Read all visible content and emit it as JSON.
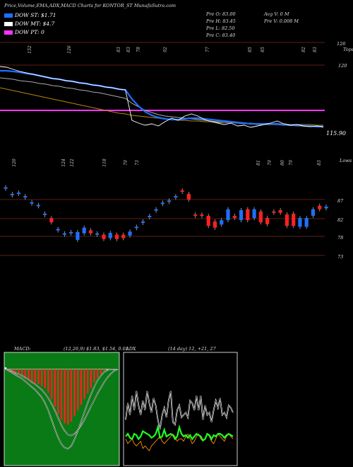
{
  "header": {
    "title": "Price,Volume,EMA,ADX,MACD Charts for KONTOR_ST MunafaSutra.com",
    "ohlc": [
      "Pre O: 83.00",
      "Pre H: 83.45",
      "Pre L: 82.50",
      "Pre C: 83.40"
    ],
    "volume": [
      "Avg V: 0  M",
      "Pre V: 0.008 M"
    ]
  },
  "legend": [
    {
      "label": "DOW ST: $1.71",
      "color": "#1e6fff"
    },
    {
      "label": "DOW MT: $4.7",
      "color": "#ffffff"
    },
    {
      "label": "DOW PT: 0",
      "color": "#ff33ff"
    }
  ],
  "chart_data": [
    {
      "type": "line",
      "name": "price-ema",
      "top_labels": [
        "152",
        "126",
        "83",
        "83",
        "78",
        "92",
        "77",
        "85",
        "85",
        "82",
        "83"
      ],
      "right_labels": [
        "126",
        "120",
        "115.90"
      ],
      "right_corner_label": "Tops",
      "ylim": [
        112,
        128
      ],
      "close": [
        124.6,
        124.5,
        124.2,
        123.9,
        123.7,
        123.5,
        123.3,
        123.1,
        122.9,
        122.8,
        122.6,
        122.5,
        122.3,
        122.2,
        122.0,
        121.9,
        121.7,
        121.6,
        121.4,
        121.3,
        117.0,
        116.6,
        116.3,
        116.5,
        116.2,
        116.8,
        117.3,
        117.0,
        117.6,
        117.9,
        117.6,
        117.1,
        116.8,
        116.6,
        116.4,
        116.6,
        116.2,
        116.3,
        116.0,
        116.2,
        116.4,
        116.6,
        116.9,
        116.5,
        116.3,
        116.4,
        116.2,
        116.1,
        116.2,
        116.1
      ],
      "ema_short": [
        124.0,
        124.0,
        123.9,
        123.8,
        123.6,
        123.5,
        123.3,
        123.1,
        122.9,
        122.8,
        122.6,
        122.5,
        122.3,
        122.2,
        122.0,
        121.9,
        121.7,
        121.6,
        121.4,
        121.3,
        120.0,
        119.0,
        118.2,
        117.7,
        117.4,
        117.2,
        117.1,
        117.1,
        117.2,
        117.3,
        117.3,
        117.2,
        117.1,
        117.0,
        116.9,
        116.8,
        116.7,
        116.6,
        116.5,
        116.5,
        116.5,
        116.5,
        116.5,
        116.4,
        116.3,
        116.3,
        116.2,
        116.2,
        116.1,
        116.1
      ],
      "ema_mid": [
        123.0,
        122.9,
        122.8,
        122.6,
        122.5,
        122.4,
        122.2,
        122.1,
        121.9,
        121.8,
        121.6,
        121.5,
        121.3,
        121.2,
        121.0,
        120.9,
        120.7,
        120.5,
        120.3,
        120.1,
        119.4,
        118.9,
        118.4,
        118.1,
        117.8,
        117.6,
        117.5,
        117.4,
        117.3,
        117.2,
        117.1,
        117.0,
        116.9,
        116.8,
        116.7,
        116.7,
        116.6,
        116.5,
        116.5,
        116.4,
        116.4,
        116.4,
        116.4,
        116.3,
        116.3,
        116.2,
        116.2,
        116.1,
        116.1,
        116.0
      ],
      "ema_long": [
        121.6,
        121.4,
        121.2,
        121.0,
        120.8,
        120.6,
        120.4,
        120.2,
        120.0,
        119.8,
        119.6,
        119.4,
        119.2,
        119.0,
        118.8,
        118.6,
        118.4,
        118.2,
        118.0,
        117.9,
        117.7,
        117.6,
        117.5,
        117.4,
        117.3,
        117.2,
        117.1,
        117.0,
        117.0,
        116.9,
        116.9,
        116.8,
        116.8,
        116.7,
        116.7,
        116.7,
        116.6,
        116.6,
        116.6,
        116.5,
        116.5,
        116.5,
        116.5,
        116.5,
        116.4,
        116.4,
        116.4,
        116.4,
        116.3,
        116.3
      ],
      "pt_level": 118.4
    },
    {
      "type": "bar",
      "name": "candles",
      "top_labels": [
        "120",
        "124",
        "122",
        "118",
        "79",
        "73",
        "81",
        "79",
        "80",
        "79",
        "83"
      ],
      "right_labels": [
        "87",
        "82",
        "78",
        "73"
      ],
      "right_corner_label": "Lows",
      "ylim": [
        72,
        93
      ],
      "candles": [
        {
          "o": 89.0,
          "c": 89.0,
          "up": true
        },
        {
          "o": 87.5,
          "c": 87.5,
          "up": true
        },
        {
          "o": 87.6,
          "c": 87.8,
          "up": true
        },
        {
          "o": 87.0,
          "c": 87.0,
          "up": true
        },
        {
          "o": 85.6,
          "c": 85.6,
          "up": true
        },
        {
          "o": 85.0,
          "c": 85.0,
          "up": true
        },
        {
          "o": 83.0,
          "c": 83.0,
          "up": true
        },
        {
          "o": 81.0,
          "c": 82.0,
          "up": false
        },
        {
          "o": 79.5,
          "c": 79.5,
          "up": true
        },
        {
          "o": 78.5,
          "c": 78.5,
          "up": true
        },
        {
          "o": 78.8,
          "c": 78.8,
          "up": true
        },
        {
          "o": 77.0,
          "c": 78.8,
          "up": true
        },
        {
          "o": 78.5,
          "c": 79.8,
          "up": true
        },
        {
          "o": 78.5,
          "c": 79.2,
          "up": false
        },
        {
          "o": 78.5,
          "c": 78.5,
          "up": true
        },
        {
          "o": 78.2,
          "c": 77.2,
          "up": false
        },
        {
          "o": 77.4,
          "c": 78.6,
          "up": true
        },
        {
          "o": 77.2,
          "c": 78.2,
          "up": false
        },
        {
          "o": 77.4,
          "c": 78.2,
          "up": false
        },
        {
          "o": 78.0,
          "c": 78.9,
          "up": true
        },
        {
          "o": 80.0,
          "c": 80.0,
          "up": true
        },
        {
          "o": 81.2,
          "c": 81.2,
          "up": true
        },
        {
          "o": 82.5,
          "c": 82.5,
          "up": true
        },
        {
          "o": 84.0,
          "c": 84.0,
          "up": true
        },
        {
          "o": 85.5,
          "c": 85.5,
          "up": true
        },
        {
          "o": 86.0,
          "c": 86.0,
          "up": true
        },
        {
          "o": 87.0,
          "c": 87.0,
          "up": true
        },
        {
          "o": 88.3,
          "c": 88.3,
          "up": false
        },
        {
          "o": 87.5,
          "c": 86.2,
          "up": false
        },
        {
          "o": 82.5,
          "c": 82.8,
          "up": false
        },
        {
          "o": 82.5,
          "c": 82.8,
          "up": false
        },
        {
          "o": 80.2,
          "c": 82.5,
          "up": false
        },
        {
          "o": 81.2,
          "c": 79.8,
          "up": false
        },
        {
          "o": 80.5,
          "c": 81.5,
          "up": true
        },
        {
          "o": 81.5,
          "c": 84.0,
          "up": true
        },
        {
          "o": 82.0,
          "c": 82.5,
          "up": false
        },
        {
          "o": 81.5,
          "c": 83.8,
          "up": true
        },
        {
          "o": 84.0,
          "c": 81.5,
          "up": false
        },
        {
          "o": 84.0,
          "c": 82.0,
          "up": true
        },
        {
          "o": 83.5,
          "c": 81.0,
          "up": false
        },
        {
          "o": 80.6,
          "c": 82.0,
          "up": false
        },
        {
          "o": 83.5,
          "c": 83.5,
          "up": false
        },
        {
          "o": 83.8,
          "c": 83.2,
          "up": false
        },
        {
          "o": 80.2,
          "c": 82.8,
          "up": false
        },
        {
          "o": 80.2,
          "c": 83.0,
          "up": false
        },
        {
          "o": 82.0,
          "c": 80.0,
          "up": true
        },
        {
          "o": 80.0,
          "c": 82.0,
          "up": true
        },
        {
          "o": 82.5,
          "c": 84.0,
          "up": true
        },
        {
          "o": 84.0,
          "c": 84.8,
          "up": false
        },
        {
          "o": 84.2,
          "c": 84.6,
          "up": true
        }
      ]
    },
    {
      "type": "bar",
      "name": "macd",
      "title": "MACD:",
      "params": "(12,26,9) $1.83, $1.54, 0.01",
      "histogram": [
        0.2,
        -0.3,
        -0.4,
        -0.5,
        -0.6,
        -0.8,
        -1.0,
        -1.2,
        -1.4,
        -1.5,
        -1.6,
        -1.8,
        -2.0,
        -2.5,
        -3.2,
        -4.0,
        -4.8,
        -5.4,
        -5.8,
        -5.9,
        -5.6,
        -5.0,
        -4.4,
        -3.8,
        -3.2,
        -2.6,
        -2.0,
        -1.4,
        -0.9,
        -0.5,
        -0.2,
        0.0,
        0.0,
        0.0,
        0.0
      ],
      "macd_line": [
        0.0,
        -0.2,
        -0.4,
        -0.6,
        -0.8,
        -1.0,
        -1.3,
        -1.6,
        -1.9,
        -2.2,
        -2.6,
        -3.0,
        -3.6,
        -4.4,
        -5.4,
        -6.4,
        -7.3,
        -8.0,
        -8.4,
        -8.5,
        -8.2,
        -7.5,
        -6.6,
        -5.6,
        -4.6,
        -3.6,
        -2.7,
        -1.9,
        -1.2,
        -0.7,
        -0.3,
        -0.1,
        0.0,
        0.0,
        0.0
      ],
      "signal_line": [
        0.0,
        -0.1,
        -0.2,
        -0.4,
        -0.5,
        -0.7,
        -0.9,
        -1.1,
        -1.4,
        -1.6,
        -1.9,
        -2.2,
        -2.6,
        -3.1,
        -3.7,
        -4.4,
        -5.2,
        -6.0,
        -6.6,
        -7.0,
        -7.1,
        -6.9,
        -6.5,
        -6.0,
        -5.4,
        -4.7,
        -4.0,
        -3.3,
        -2.6,
        -2.0,
        -1.4,
        -0.9,
        -0.5,
        -0.2,
        0.0
      ],
      "ylim": [
        -10,
        1.5
      ]
    },
    {
      "type": "line",
      "name": "adx",
      "title": "ADX",
      "params": "(14  day) 12,  +21,  27",
      "adx": [
        18,
        25,
        20,
        28,
        22,
        30,
        24,
        20,
        26,
        22,
        30,
        25,
        21,
        27,
        24,
        18,
        14,
        20,
        23,
        19,
        26,
        30,
        17,
        16,
        22,
        24,
        19,
        20,
        21,
        19,
        26,
        25,
        22,
        28,
        22,
        28,
        18,
        24,
        20,
        21,
        17,
        22,
        26,
        23,
        27,
        20,
        21,
        19,
        24,
        23,
        21
      ],
      "plus_di": [
        20,
        22,
        19,
        18,
        22,
        21,
        18,
        20,
        24,
        23,
        22,
        21,
        19,
        20,
        22,
        27,
        19,
        20,
        25,
        20,
        21,
        22,
        21,
        18,
        20,
        27,
        22,
        20,
        21,
        19,
        21,
        18,
        20,
        22,
        21,
        20,
        17,
        18,
        22,
        21,
        18,
        21,
        20,
        22,
        22,
        21,
        19,
        21,
        22,
        21,
        20
      ],
      "minus_di": [
        10,
        8,
        9,
        10,
        8,
        7,
        8,
        9,
        6,
        7,
        6,
        5,
        7,
        8,
        9,
        10,
        11,
        9,
        8,
        9,
        10,
        11,
        12,
        11,
        9,
        10,
        10,
        9,
        11,
        12,
        10,
        8,
        9,
        11,
        12,
        10,
        9,
        10,
        12,
        11,
        9,
        8,
        10,
        12,
        11,
        10,
        9,
        11,
        12,
        11,
        10
      ],
      "ylim": [
        0,
        45
      ]
    }
  ]
}
